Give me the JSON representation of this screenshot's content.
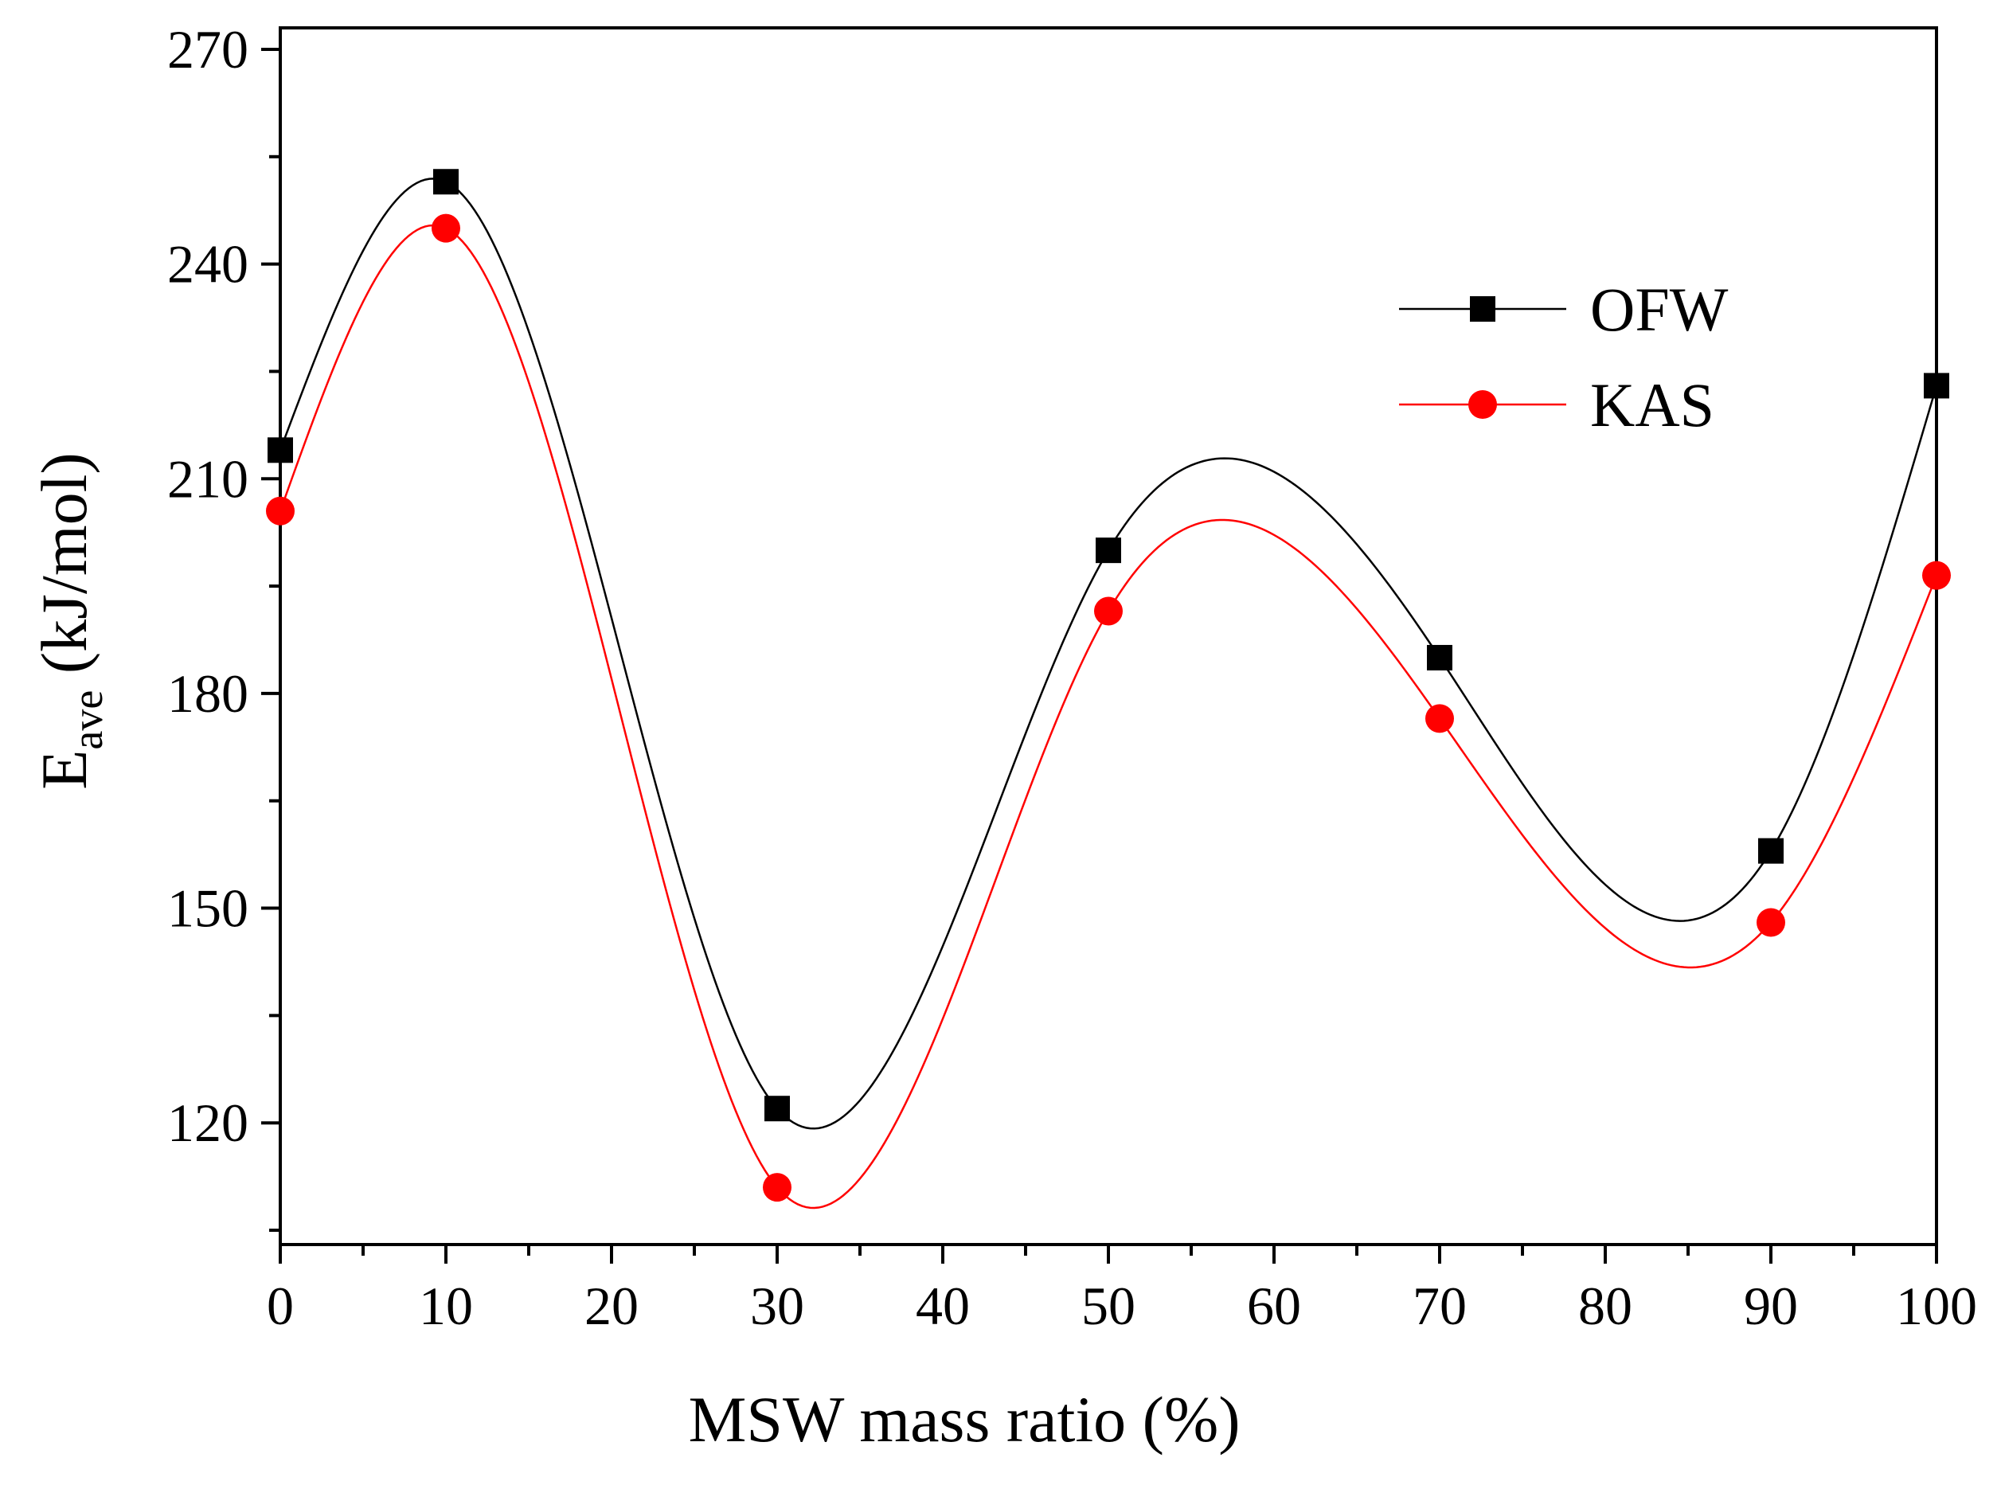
{
  "chart_data": {
    "type": "line",
    "title": "",
    "xlabel": "MSW mass ratio (%)",
    "ylabel": {
      "main": "E",
      "sub": "ave",
      "unit": " (kJ/mol)"
    },
    "x": [
      0,
      10,
      30,
      50,
      70,
      90,
      100
    ],
    "xlim": [
      0,
      100
    ],
    "ylim": [
      103,
      273
    ],
    "xticks": [
      0,
      10,
      20,
      30,
      40,
      50,
      60,
      70,
      80,
      90,
      100
    ],
    "yticks": [
      120,
      150,
      180,
      210,
      240,
      270
    ],
    "grid": false,
    "legend_position": "top-right",
    "series": [
      {
        "name": "OFW",
        "color": "#000000",
        "marker": "square",
        "values": [
          214,
          251.5,
          122,
          200,
          185,
          158,
          223
        ]
      },
      {
        "name": "KAS",
        "color": "#ff0000",
        "marker": "circle",
        "values": [
          205.5,
          245,
          111,
          191.5,
          176.5,
          148,
          196.5
        ]
      }
    ]
  }
}
